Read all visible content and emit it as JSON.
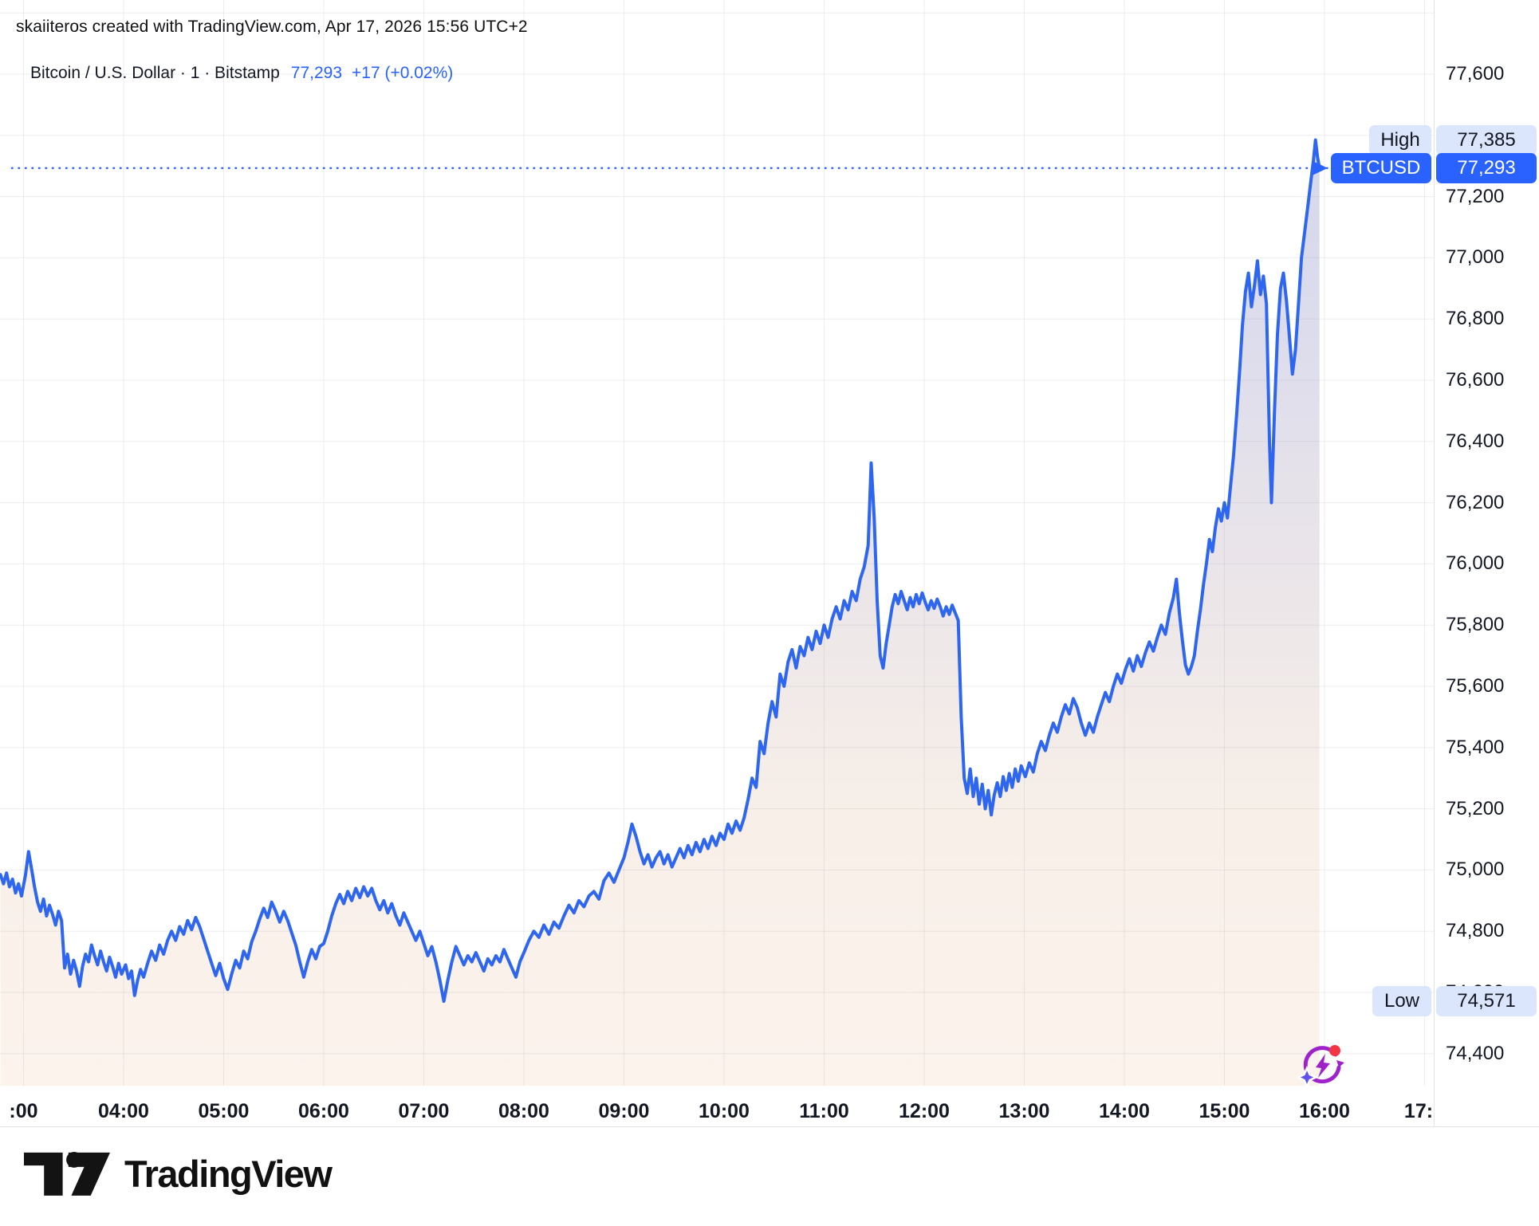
{
  "attribution": "skaiiteros created with TradingView.com, Apr 17, 2026 15:56 UTC+2",
  "legend": {
    "title": "Bitcoin / U.S. Dollar · 1 · Bitstamp",
    "price": "77,293",
    "change": "+17 (+0.02%)"
  },
  "badges": {
    "high": {
      "label": "High",
      "value": "77,385",
      "price": 77385
    },
    "current": {
      "label": "BTCUSD",
      "value": "77,293",
      "price": 77293
    },
    "low": {
      "label": "Low",
      "value": "74,571",
      "price": 74571
    }
  },
  "footer": {
    "logo_text": "TradingView"
  },
  "icons": {
    "ai_refresh_icon": "circular-arrows-lightning",
    "notification_dot": "red-dot",
    "sparkle": "four-point-star"
  },
  "colors": {
    "line": "#2e66f0",
    "accent_blue": "#2962ff",
    "badge_light": "#dbe5fb",
    "text_dark": "#131722",
    "grid": "#eef0f3",
    "fill_top": "#cfd5ec",
    "fill_mid": "#ece6e9",
    "fill_bottom": "#fbf3ec",
    "icon_purple": "#9e22c9",
    "icon_red": "#f23645",
    "icon_star": "#6450f0"
  },
  "chart_data": {
    "type": "area",
    "title": "Bitcoin / U.S. Dollar",
    "symbol": "BTCUSD",
    "interval": "1",
    "exchange": "Bitstamp",
    "current_price": 77293,
    "high": 77385,
    "low": 74571,
    "ylim": [
      74330,
      77840
    ],
    "grid": true,
    "y_ticks": [
      {
        "label": "77,600",
        "price": 77600
      },
      {
        "label": "77,400",
        "price": 77400
      },
      {
        "label": "77,200",
        "price": 77200
      },
      {
        "label": "77,000",
        "price": 77000
      },
      {
        "label": "76,800",
        "price": 76800
      },
      {
        "label": "76,600",
        "price": 76600
      },
      {
        "label": "76,400",
        "price": 76400
      },
      {
        "label": "76,200",
        "price": 76200
      },
      {
        "label": "76,000",
        "price": 76000
      },
      {
        "label": "75,800",
        "price": 75800
      },
      {
        "label": "75,600",
        "price": 75600
      },
      {
        "label": "75,400",
        "price": 75400
      },
      {
        "label": "75,200",
        "price": 75200
      },
      {
        "label": "75,000",
        "price": 75000
      },
      {
        "label": "74,800",
        "price": 74800
      },
      {
        "label": "74,600",
        "price": 74600
      },
      {
        "label": "74,400",
        "price": 74400
      }
    ],
    "x_ticks": [
      {
        "label": ":00",
        "hour": 3
      },
      {
        "label": "04:00",
        "hour": 4
      },
      {
        "label": "05:00",
        "hour": 5
      },
      {
        "label": "06:00",
        "hour": 6
      },
      {
        "label": "07:00",
        "hour": 7
      },
      {
        "label": "08:00",
        "hour": 8
      },
      {
        "label": "09:00",
        "hour": 9
      },
      {
        "label": "10:00",
        "hour": 10
      },
      {
        "label": "11:00",
        "hour": 11
      },
      {
        "label": "12:00",
        "hour": 12
      },
      {
        "label": "13:00",
        "hour": 13
      },
      {
        "label": "14:00",
        "hour": 14
      },
      {
        "label": "15:00",
        "hour": 15
      },
      {
        "label": "16:00",
        "hour": 16
      },
      {
        "label": "17:",
        "hour": 17
      }
    ],
    "series": [
      [
        2.77,
        74985
      ],
      [
        2.8,
        74955
      ],
      [
        2.83,
        74990
      ],
      [
        2.86,
        74945
      ],
      [
        2.89,
        74970
      ],
      [
        2.92,
        74925
      ],
      [
        2.95,
        74955
      ],
      [
        2.98,
        74915
      ],
      [
        3.02,
        74985
      ],
      [
        3.05,
        75060
      ],
      [
        3.08,
        75005
      ],
      [
        3.11,
        74945
      ],
      [
        3.14,
        74895
      ],
      [
        3.17,
        74865
      ],
      [
        3.2,
        74905
      ],
      [
        3.23,
        74850
      ],
      [
        3.26,
        74885
      ],
      [
        3.29,
        74855
      ],
      [
        3.32,
        74820
      ],
      [
        3.35,
        74865
      ],
      [
        3.38,
        74835
      ],
      [
        3.41,
        74680
      ],
      [
        3.44,
        74725
      ],
      [
        3.47,
        74660
      ],
      [
        3.5,
        74705
      ],
      [
        3.53,
        74670
      ],
      [
        3.56,
        74620
      ],
      [
        3.59,
        74685
      ],
      [
        3.62,
        74725
      ],
      [
        3.65,
        74700
      ],
      [
        3.68,
        74755
      ],
      [
        3.71,
        74720
      ],
      [
        3.74,
        74690
      ],
      [
        3.77,
        74735
      ],
      [
        3.8,
        74700
      ],
      [
        3.83,
        74670
      ],
      [
        3.86,
        74715
      ],
      [
        3.89,
        74685
      ],
      [
        3.92,
        74650
      ],
      [
        3.95,
        74695
      ],
      [
        3.98,
        74660
      ],
      [
        4.02,
        74690
      ],
      [
        4.05,
        74645
      ],
      [
        4.08,
        74670
      ],
      [
        4.11,
        74590
      ],
      [
        4.14,
        74640
      ],
      [
        4.17,
        74675
      ],
      [
        4.2,
        74650
      ],
      [
        4.24,
        74695
      ],
      [
        4.28,
        74735
      ],
      [
        4.32,
        74705
      ],
      [
        4.36,
        74755
      ],
      [
        4.4,
        74725
      ],
      [
        4.44,
        74770
      ],
      [
        4.48,
        74800
      ],
      [
        4.52,
        74770
      ],
      [
        4.56,
        74815
      ],
      [
        4.6,
        74790
      ],
      [
        4.64,
        74835
      ],
      [
        4.68,
        74805
      ],
      [
        4.72,
        74845
      ],
      [
        4.76,
        74815
      ],
      [
        4.8,
        74775
      ],
      [
        4.84,
        74735
      ],
      [
        4.88,
        74695
      ],
      [
        4.92,
        74655
      ],
      [
        4.96,
        74695
      ],
      [
        5.0,
        74645
      ],
      [
        5.04,
        74610
      ],
      [
        5.08,
        74660
      ],
      [
        5.12,
        74705
      ],
      [
        5.16,
        74680
      ],
      [
        5.2,
        74735
      ],
      [
        5.24,
        74710
      ],
      [
        5.28,
        74765
      ],
      [
        5.32,
        74800
      ],
      [
        5.36,
        74840
      ],
      [
        5.4,
        74875
      ],
      [
        5.44,
        74845
      ],
      [
        5.48,
        74895
      ],
      [
        5.52,
        74865
      ],
      [
        5.56,
        74830
      ],
      [
        5.6,
        74865
      ],
      [
        5.64,
        74835
      ],
      [
        5.68,
        74795
      ],
      [
        5.72,
        74755
      ],
      [
        5.76,
        74700
      ],
      [
        5.8,
        74650
      ],
      [
        5.84,
        74700
      ],
      [
        5.88,
        74740
      ],
      [
        5.92,
        74710
      ],
      [
        5.96,
        74750
      ],
      [
        6.0,
        74760
      ],
      [
        6.04,
        74800
      ],
      [
        6.08,
        74850
      ],
      [
        6.12,
        74890
      ],
      [
        6.16,
        74920
      ],
      [
        6.2,
        74890
      ],
      [
        6.24,
        74930
      ],
      [
        6.28,
        74900
      ],
      [
        6.32,
        74940
      ],
      [
        6.36,
        74910
      ],
      [
        6.4,
        74945
      ],
      [
        6.44,
        74915
      ],
      [
        6.48,
        74940
      ],
      [
        6.52,
        74900
      ],
      [
        6.56,
        74870
      ],
      [
        6.6,
        74900
      ],
      [
        6.64,
        74860
      ],
      [
        6.68,
        74890
      ],
      [
        6.72,
        74850
      ],
      [
        6.76,
        74820
      ],
      [
        6.8,
        74860
      ],
      [
        6.84,
        74830
      ],
      [
        6.88,
        74800
      ],
      [
        6.92,
        74770
      ],
      [
        6.96,
        74800
      ],
      [
        7.0,
        74760
      ],
      [
        7.04,
        74720
      ],
      [
        7.08,
        74750
      ],
      [
        7.12,
        74700
      ],
      [
        7.16,
        74640
      ],
      [
        7.2,
        74571
      ],
      [
        7.24,
        74640
      ],
      [
        7.28,
        74700
      ],
      [
        7.32,
        74750
      ],
      [
        7.36,
        74720
      ],
      [
        7.4,
        74690
      ],
      [
        7.44,
        74720
      ],
      [
        7.48,
        74700
      ],
      [
        7.52,
        74730
      ],
      [
        7.56,
        74700
      ],
      [
        7.6,
        74670
      ],
      [
        7.64,
        74710
      ],
      [
        7.68,
        74690
      ],
      [
        7.72,
        74720
      ],
      [
        7.76,
        74700
      ],
      [
        7.8,
        74740
      ],
      [
        7.84,
        74710
      ],
      [
        7.88,
        74680
      ],
      [
        7.92,
        74650
      ],
      [
        7.96,
        74700
      ],
      [
        8.0,
        74730
      ],
      [
        8.05,
        74770
      ],
      [
        8.1,
        74800
      ],
      [
        8.15,
        74780
      ],
      [
        8.2,
        74820
      ],
      [
        8.25,
        74790
      ],
      [
        8.3,
        74830
      ],
      [
        8.35,
        74810
      ],
      [
        8.4,
        74850
      ],
      [
        8.45,
        74885
      ],
      [
        8.5,
        74860
      ],
      [
        8.55,
        74900
      ],
      [
        8.6,
        74880
      ],
      [
        8.65,
        74915
      ],
      [
        8.7,
        74930
      ],
      [
        8.75,
        74905
      ],
      [
        8.8,
        74965
      ],
      [
        8.85,
        74990
      ],
      [
        8.9,
        74960
      ],
      [
        8.95,
        75000
      ],
      [
        9.0,
        75040
      ],
      [
        9.04,
        75090
      ],
      [
        9.08,
        75150
      ],
      [
        9.12,
        75110
      ],
      [
        9.16,
        75060
      ],
      [
        9.2,
        75020
      ],
      [
        9.24,
        75050
      ],
      [
        9.28,
        75010
      ],
      [
        9.32,
        75040
      ],
      [
        9.36,
        75060
      ],
      [
        9.4,
        75020
      ],
      [
        9.44,
        75050
      ],
      [
        9.48,
        75010
      ],
      [
        9.52,
        75040
      ],
      [
        9.56,
        75070
      ],
      [
        9.6,
        75040
      ],
      [
        9.64,
        75080
      ],
      [
        9.68,
        75050
      ],
      [
        9.72,
        75090
      ],
      [
        9.76,
        75060
      ],
      [
        9.8,
        75100
      ],
      [
        9.84,
        75070
      ],
      [
        9.88,
        75110
      ],
      [
        9.92,
        75080
      ],
      [
        9.96,
        75120
      ],
      [
        10.0,
        75100
      ],
      [
        10.04,
        75150
      ],
      [
        10.08,
        75120
      ],
      [
        10.12,
        75160
      ],
      [
        10.16,
        75130
      ],
      [
        10.2,
        75170
      ],
      [
        10.24,
        75230
      ],
      [
        10.28,
        75300
      ],
      [
        10.32,
        75270
      ],
      [
        10.36,
        75420
      ],
      [
        10.4,
        75380
      ],
      [
        10.44,
        75480
      ],
      [
        10.48,
        75550
      ],
      [
        10.52,
        75500
      ],
      [
        10.56,
        75640
      ],
      [
        10.6,
        75600
      ],
      [
        10.64,
        75680
      ],
      [
        10.68,
        75720
      ],
      [
        10.72,
        75660
      ],
      [
        10.76,
        75730
      ],
      [
        10.8,
        75700
      ],
      [
        10.84,
        75760
      ],
      [
        10.88,
        75720
      ],
      [
        10.92,
        75780
      ],
      [
        10.96,
        75740
      ],
      [
        11.0,
        75800
      ],
      [
        11.04,
        75760
      ],
      [
        11.08,
        75820
      ],
      [
        11.12,
        75860
      ],
      [
        11.16,
        75820
      ],
      [
        11.2,
        75880
      ],
      [
        11.24,
        75850
      ],
      [
        11.28,
        75910
      ],
      [
        11.32,
        75880
      ],
      [
        11.36,
        75950
      ],
      [
        11.4,
        75990
      ],
      [
        11.44,
        76060
      ],
      [
        11.47,
        76330
      ],
      [
        11.5,
        76150
      ],
      [
        11.53,
        75880
      ],
      [
        11.56,
        75700
      ],
      [
        11.59,
        75660
      ],
      [
        11.62,
        75740
      ],
      [
        11.65,
        75800
      ],
      [
        11.68,
        75860
      ],
      [
        11.71,
        75900
      ],
      [
        11.74,
        75870
      ],
      [
        11.77,
        75910
      ],
      [
        11.8,
        75880
      ],
      [
        11.83,
        75850
      ],
      [
        11.86,
        75890
      ],
      [
        11.89,
        75860
      ],
      [
        11.92,
        75900
      ],
      [
        11.95,
        75870
      ],
      [
        11.98,
        75905
      ],
      [
        12.01,
        75875
      ],
      [
        12.04,
        75850
      ],
      [
        12.07,
        75880
      ],
      [
        12.1,
        75855
      ],
      [
        12.13,
        75885
      ],
      [
        12.16,
        75860
      ],
      [
        12.19,
        75830
      ],
      [
        12.22,
        75860
      ],
      [
        12.25,
        75835
      ],
      [
        12.28,
        75865
      ],
      [
        12.31,
        75840
      ],
      [
        12.34,
        75815
      ],
      [
        12.37,
        75500
      ],
      [
        12.4,
        75300
      ],
      [
        12.43,
        75250
      ],
      [
        12.46,
        75330
      ],
      [
        12.49,
        75240
      ],
      [
        12.52,
        75300
      ],
      [
        12.55,
        75215
      ],
      [
        12.58,
        75280
      ],
      [
        12.61,
        75200
      ],
      [
        12.64,
        75260
      ],
      [
        12.67,
        75180
      ],
      [
        12.7,
        75245
      ],
      [
        12.73,
        75285
      ],
      [
        12.76,
        75240
      ],
      [
        12.79,
        75305
      ],
      [
        12.82,
        75260
      ],
      [
        12.85,
        75315
      ],
      [
        12.88,
        75270
      ],
      [
        12.91,
        75330
      ],
      [
        12.94,
        75290
      ],
      [
        12.97,
        75340
      ],
      [
        13.01,
        75305
      ],
      [
        13.05,
        75350
      ],
      [
        13.09,
        75320
      ],
      [
        13.13,
        75380
      ],
      [
        13.17,
        75420
      ],
      [
        13.21,
        75390
      ],
      [
        13.25,
        75440
      ],
      [
        13.29,
        75480
      ],
      [
        13.33,
        75450
      ],
      [
        13.37,
        75500
      ],
      [
        13.41,
        75540
      ],
      [
        13.45,
        75510
      ],
      [
        13.49,
        75560
      ],
      [
        13.53,
        75530
      ],
      [
        13.57,
        75480
      ],
      [
        13.61,
        75440
      ],
      [
        13.65,
        75480
      ],
      [
        13.69,
        75450
      ],
      [
        13.73,
        75500
      ],
      [
        13.77,
        75540
      ],
      [
        13.81,
        75580
      ],
      [
        13.85,
        75550
      ],
      [
        13.89,
        75600
      ],
      [
        13.93,
        75640
      ],
      [
        13.97,
        75610
      ],
      [
        14.01,
        75655
      ],
      [
        14.05,
        75690
      ],
      [
        14.09,
        75650
      ],
      [
        14.13,
        75700
      ],
      [
        14.17,
        75665
      ],
      [
        14.21,
        75710
      ],
      [
        14.25,
        75745
      ],
      [
        14.29,
        75715
      ],
      [
        14.33,
        75760
      ],
      [
        14.37,
        75800
      ],
      [
        14.41,
        75770
      ],
      [
        14.45,
        75840
      ],
      [
        14.49,
        75890
      ],
      [
        14.52,
        75950
      ],
      [
        14.55,
        75840
      ],
      [
        14.58,
        75750
      ],
      [
        14.61,
        75670
      ],
      [
        14.64,
        75640
      ],
      [
        14.67,
        75665
      ],
      [
        14.7,
        75700
      ],
      [
        14.73,
        75780
      ],
      [
        14.76,
        75850
      ],
      [
        14.79,
        75930
      ],
      [
        14.82,
        76000
      ],
      [
        14.85,
        76080
      ],
      [
        14.88,
        76040
      ],
      [
        14.91,
        76120
      ],
      [
        14.94,
        76180
      ],
      [
        14.97,
        76140
      ],
      [
        15.0,
        76200
      ],
      [
        15.03,
        76150
      ],
      [
        15.06,
        76250
      ],
      [
        15.09,
        76350
      ],
      [
        15.12,
        76480
      ],
      [
        15.15,
        76620
      ],
      [
        15.18,
        76780
      ],
      [
        15.21,
        76890
      ],
      [
        15.24,
        76950
      ],
      [
        15.27,
        76840
      ],
      [
        15.3,
        76910
      ],
      [
        15.33,
        76990
      ],
      [
        15.36,
        76880
      ],
      [
        15.39,
        76940
      ],
      [
        15.42,
        76850
      ],
      [
        15.45,
        76400
      ],
      [
        15.47,
        76200
      ],
      [
        15.5,
        76500
      ],
      [
        15.53,
        76750
      ],
      [
        15.56,
        76900
      ],
      [
        15.59,
        76950
      ],
      [
        15.62,
        76860
      ],
      [
        15.65,
        76740
      ],
      [
        15.68,
        76620
      ],
      [
        15.71,
        76700
      ],
      [
        15.74,
        76850
      ],
      [
        15.77,
        77000
      ],
      [
        15.8,
        77080
      ],
      [
        15.83,
        77160
      ],
      [
        15.86,
        77240
      ],
      [
        15.89,
        77320
      ],
      [
        15.91,
        77385
      ],
      [
        15.93,
        77330
      ],
      [
        15.95,
        77293
      ]
    ]
  }
}
